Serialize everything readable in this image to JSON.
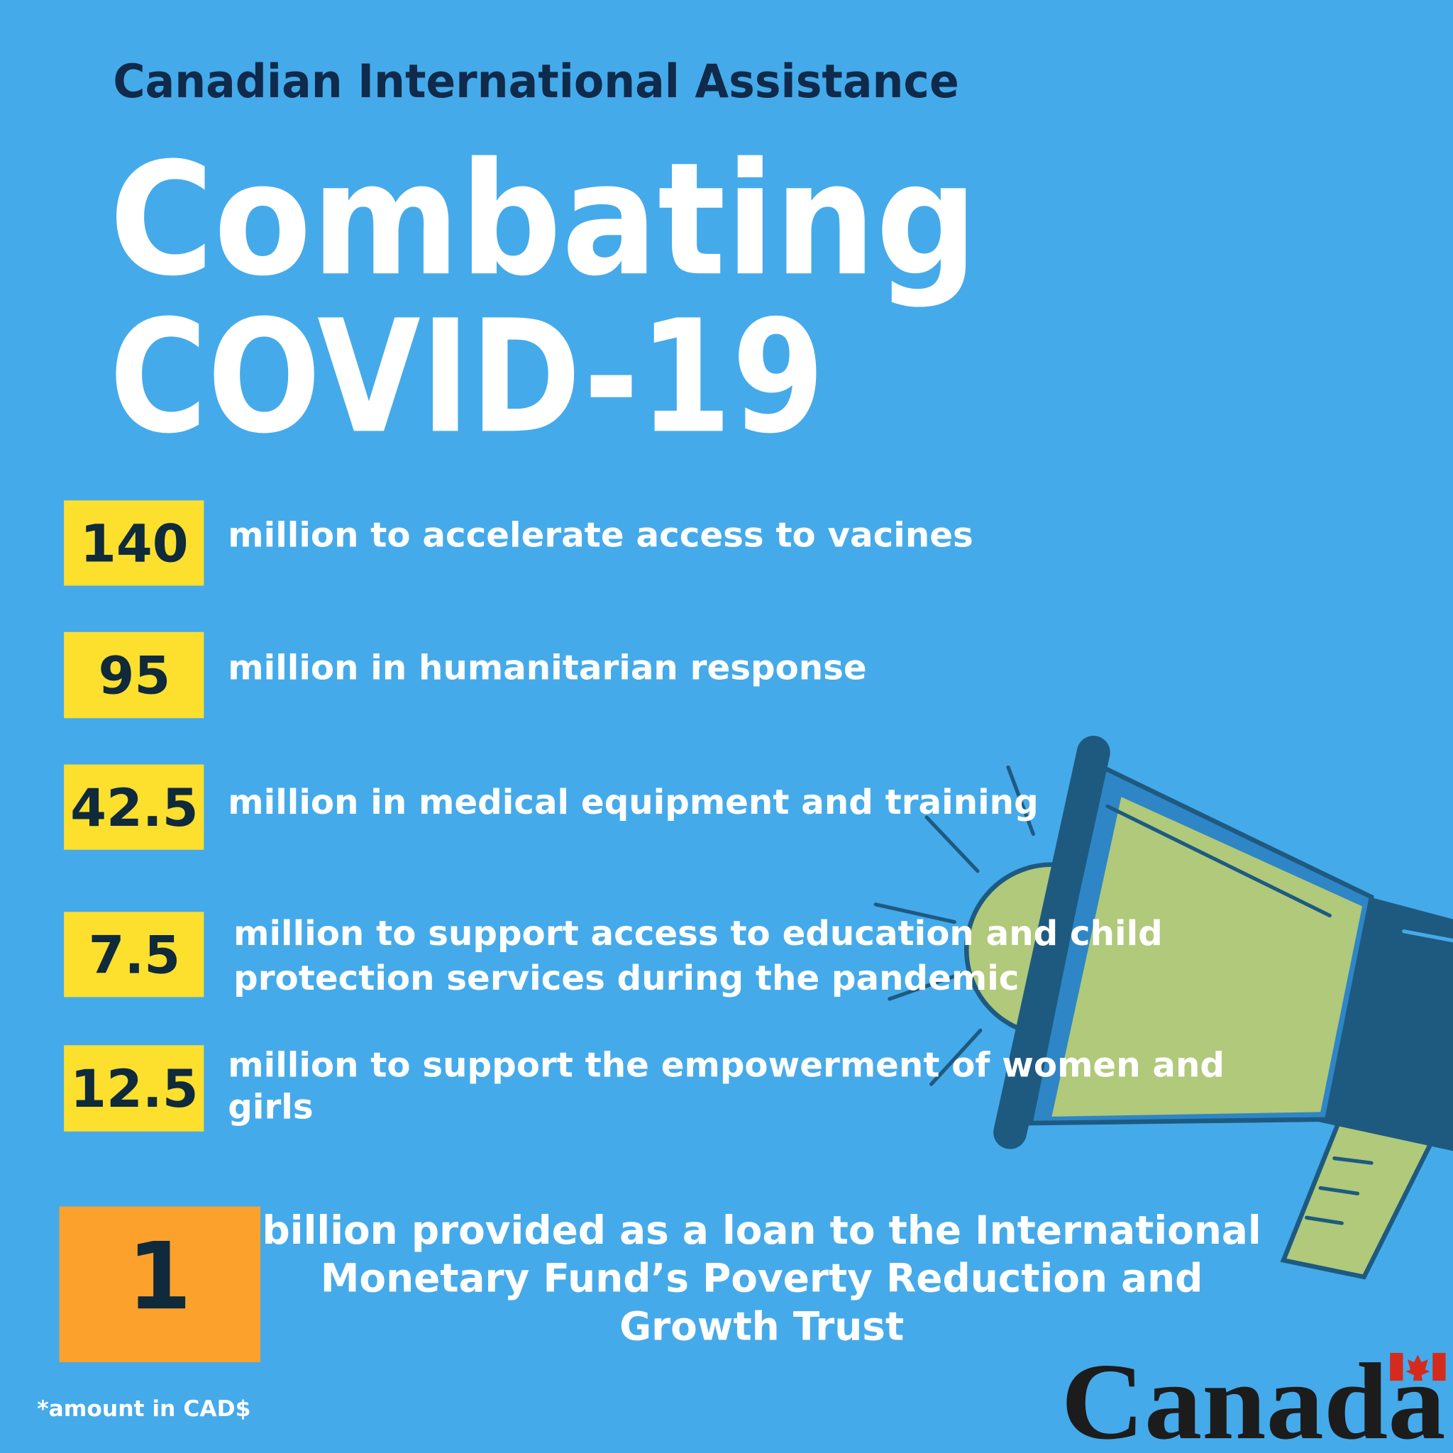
{
  "header": {
    "subtitle": "Canadian International Assistance",
    "title_lines": [
      "Combating",
      "COVID-19"
    ]
  },
  "items": [
    {
      "amount": "140",
      "lines": [
        "million to accelerate access to vacines"
      ]
    },
    {
      "amount": "95",
      "lines": [
        "million in humanitarian response"
      ]
    },
    {
      "amount": "42.5",
      "lines": [
        "million in medical equipment and training"
      ]
    },
    {
      "amount": "7.5",
      "lines": [
        "million to support access to education and child",
        "protection services during the pandemic"
      ]
    },
    {
      "amount": "12.5",
      "lines": [
        "million to support the empowerment of women and",
        "girls"
      ]
    }
  ],
  "highlight": {
    "amount": "1",
    "lines": [
      "billion provided as a loan to the International",
      "Monetary Fund’s Poverty Reduction and",
      "Growth Trust"
    ]
  },
  "footnote": "*amount in CAD$",
  "logo": "Canada"
}
